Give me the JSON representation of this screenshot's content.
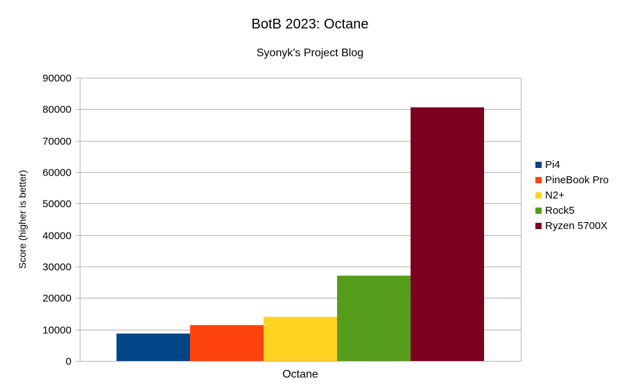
{
  "chart_data": {
    "type": "bar",
    "title": "BotB 2023: Octane",
    "subtitle": "Syonyk's Project Blog",
    "xlabel": "",
    "ylabel": "Score (higher is better)",
    "categories": [
      "Octane"
    ],
    "ylim": [
      0,
      90000
    ],
    "yticks": [
      0,
      10000,
      20000,
      30000,
      40000,
      50000,
      60000,
      70000,
      80000,
      90000
    ],
    "grid": true,
    "legend_position": "right",
    "series": [
      {
        "name": "Pi4",
        "values": [
          8700
        ],
        "color": "#004586"
      },
      {
        "name": "PineBook Pro",
        "values": [
          11400
        ],
        "color": "#ff420e"
      },
      {
        "name": "N2+",
        "values": [
          14000
        ],
        "color": "#ffd320"
      },
      {
        "name": "Rock5",
        "values": [
          27100
        ],
        "color": "#579d1c"
      },
      {
        "name": "Ryzen 5700X",
        "values": [
          80600
        ],
        "color": "#7e0021"
      }
    ]
  }
}
